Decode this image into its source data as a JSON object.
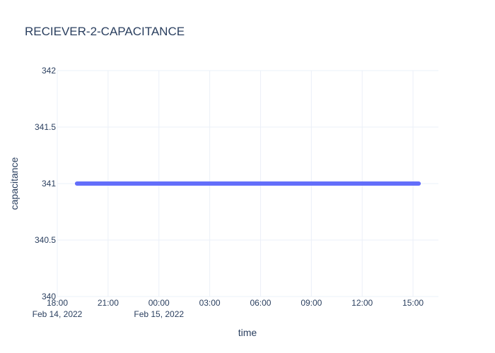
{
  "chart_data": {
    "type": "line",
    "title": "RECIEVER-2-CAPACITANCE",
    "xlabel": "time",
    "ylabel": "capacitance",
    "x_axis": {
      "type": "date",
      "range": [
        "2022-02-14 18:00",
        "2022-02-15 16:30"
      ],
      "tick_values": [
        "2022-02-14 18:00",
        "2022-02-14 21:00",
        "2022-02-15 00:00",
        "2022-02-15 03:00",
        "2022-02-15 06:00",
        "2022-02-15 09:00",
        "2022-02-15 12:00",
        "2022-02-15 15:00"
      ],
      "tick_labels": [
        "18:00",
        "21:00",
        "00:00",
        "03:00",
        "06:00",
        "09:00",
        "12:00",
        "15:00"
      ],
      "date_labels": [
        "Feb 14, 2022",
        "",
        "Feb 15, 2022",
        "",
        "",
        "",
        "",
        ""
      ]
    },
    "y_axis": {
      "range": [
        340,
        342
      ],
      "tick_values": [
        340,
        340.5,
        341,
        341.5,
        342
      ],
      "tick_labels": [
        "340",
        "340.5",
        "341",
        "341.5",
        "342"
      ]
    },
    "grid": true,
    "legend": "none",
    "series": [
      {
        "color": "#636efa",
        "x": [
          "2022-02-14 19:10",
          "2022-02-15 15:20"
        ],
        "y": [
          341,
          341
        ]
      }
    ]
  }
}
